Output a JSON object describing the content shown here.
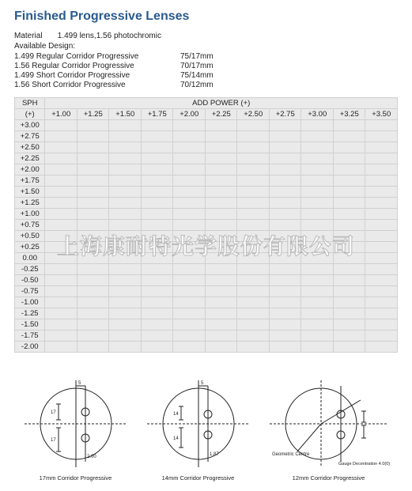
{
  "title": "Finished Progressive Lenses",
  "material": {
    "label": "Material",
    "value": "1.499 lens,1.56 photochromic"
  },
  "available_design_label": "Available Design:",
  "designs": [
    {
      "name": "1.499 Regular Corridor Progressive",
      "dim": "75/17mm"
    },
    {
      "name": "1.56 Regular Corridor Progressive",
      "dim": "70/17mm"
    },
    {
      "name": "1.499 Short Corridor Progressive",
      "dim": "75/14mm"
    },
    {
      "name": "1.56 Short Corridor Progressive",
      "dim": "70/12mm"
    }
  ],
  "table": {
    "row_header_top": "SPH",
    "row_header_bottom": "(+)",
    "group_header": "ADD    POWER (+)",
    "add_powers": [
      "+1.00",
      "+1.25",
      "+1.50",
      "+1.75",
      "+2.00",
      "+2.25",
      "+2.50",
      "+2.75",
      "+3.00",
      "+3.25",
      "+3.50"
    ],
    "sph_values": [
      "+3.00",
      "+2.75",
      "+2.50",
      "+2.25",
      "+2.00",
      "+1.75",
      "+1.50",
      "+1.25",
      "+1.00",
      "+0.75",
      "+0.50",
      "+0.25",
      "0.00",
      "-0.25",
      "-0.50",
      "-0.75",
      "-1.00",
      "-1.25",
      "-1.50",
      "-1.75",
      "-2.00"
    ]
  },
  "watermark": "上海康耐特光学股份有限公司",
  "diagrams": {
    "circle_color": "#222",
    "line_color": "#222",
    "captions": [
      "17mm Corridor Progressive",
      "14mm Corridor Progressive",
      "12mm Corridor Progressive"
    ],
    "d12_label_geo": "Geometric Centre",
    "d12_label_gauge": "Gauge Decentration 4.0(0)"
  }
}
